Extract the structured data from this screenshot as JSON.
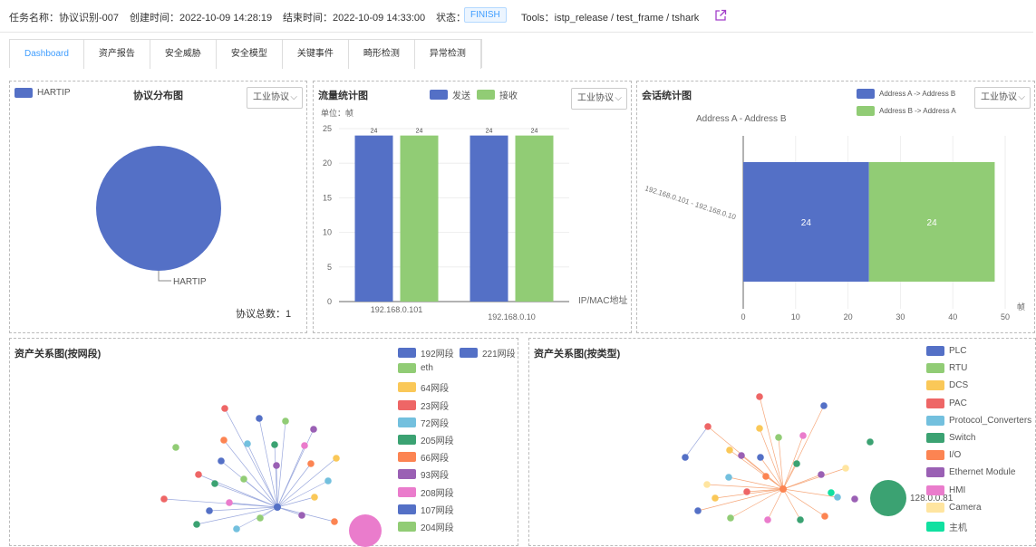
{
  "header": {
    "task_name": "任务名称：协议识别-007",
    "created": "创建时间：2022-10-09 14:28:19",
    "ended": "结束时间：2022-10-09 14:33:00",
    "status_label": "状态：",
    "status": "FINISH",
    "tools": "Tools：istp_release / test_frame / tshark",
    "external_icon": "external-link-icon"
  },
  "tabs": [
    "Dashboard",
    "资产报告",
    "安全威胁",
    "安全模型",
    "关键事件",
    "畸形检测",
    "异常检测"
  ],
  "protocol_panel": {
    "title": "协议分布图",
    "legend": "HARTIP",
    "select": "工业协议",
    "slice_label": "HARTIP",
    "total": "协议总数：1",
    "color": "#5470c6"
  },
  "traffic_panel": {
    "title": "流量统计图",
    "unit": "单位：帧",
    "select": "工业协议",
    "xlabel": "IP/MAC地址"
  },
  "session_panel": {
    "title": "会话统计图",
    "select": "工业协议",
    "subtitle": "Address A - Address B",
    "unit": "帧"
  },
  "segment_panel": {
    "title": "资产关系图(按网段)",
    "legend": [
      {
        "label": "192网段",
        "color": "#5470c6"
      },
      {
        "label": "221网段",
        "color": "#5470c6"
      },
      {
        "label": "eth",
        "color": "#91cc75"
      },
      {
        "label": "64网段",
        "color": "#fac858"
      },
      {
        "label": "23网段",
        "color": "#ee6666"
      },
      {
        "label": "72网段",
        "color": "#73c0de"
      },
      {
        "label": "205网段",
        "color": "#3ba272"
      },
      {
        "label": "66网段",
        "color": "#fc8452"
      },
      {
        "label": "93网段",
        "color": "#9a60b4"
      },
      {
        "label": "208网段",
        "color": "#ea7ccc"
      },
      {
        "label": "107网段",
        "color": "#5470c6"
      },
      {
        "label": "204网段",
        "color": "#91cc75"
      }
    ]
  },
  "type_panel": {
    "title": "资产关系图(按类型)",
    "legend": [
      {
        "label": "PLC",
        "color": "#5470c6"
      },
      {
        "label": "RTU",
        "color": "#91cc75"
      },
      {
        "label": "DCS",
        "color": "#fac858"
      },
      {
        "label": "PAC",
        "color": "#ee6666"
      },
      {
        "label": "Protocol_Converters",
        "color": "#73c0de"
      },
      {
        "label": "Switch",
        "color": "#3ba272"
      },
      {
        "label": "I/O",
        "color": "#fc8452"
      },
      {
        "label": "Ethernet Module",
        "color": "#9a60b4"
      },
      {
        "label": "HMI",
        "color": "#ea7ccc"
      },
      {
        "label": "Camera",
        "color": "#ffe5a0"
      },
      {
        "label": "主机",
        "color": "#10e0a0"
      }
    ],
    "node_label": "128.0.0.81"
  },
  "chart_data": [
    {
      "type": "pie",
      "title": "协议分布图",
      "labels": [
        "HARTIP"
      ],
      "values": [
        1
      ]
    },
    {
      "type": "bar",
      "title": "流量统计图",
      "categories": [
        "192.168.0.101",
        "192.168.0.10"
      ],
      "series": [
        {
          "name": "发送",
          "values": [
            24,
            24
          ],
          "color": "#5470c6"
        },
        {
          "name": "接收",
          "values": [
            24,
            24
          ],
          "color": "#91cc75"
        }
      ],
      "ylabel": "单位：帧",
      "xlabel": "IP/MAC地址",
      "yticks": [
        "0",
        "5",
        "10",
        "15",
        "20",
        "25"
      ],
      "ylim": [
        0,
        25
      ]
    },
    {
      "type": "bar",
      "orientation": "horizontal",
      "stacked": true,
      "title": "会话统计图",
      "subtitle": "Address A - Address B",
      "categories": [
        "192.168.0.101 - 192.168.0.10"
      ],
      "series": [
        {
          "name": "Address A -> Address B",
          "values": [
            24
          ],
          "color": "#5470c6"
        },
        {
          "name": "Address B -> Address A",
          "values": [
            24
          ],
          "color": "#91cc75"
        }
      ],
      "xticks": [
        "0",
        "10",
        "20",
        "30",
        "40",
        "50"
      ],
      "xlim": [
        0,
        50
      ],
      "xlabel": "帧"
    }
  ]
}
